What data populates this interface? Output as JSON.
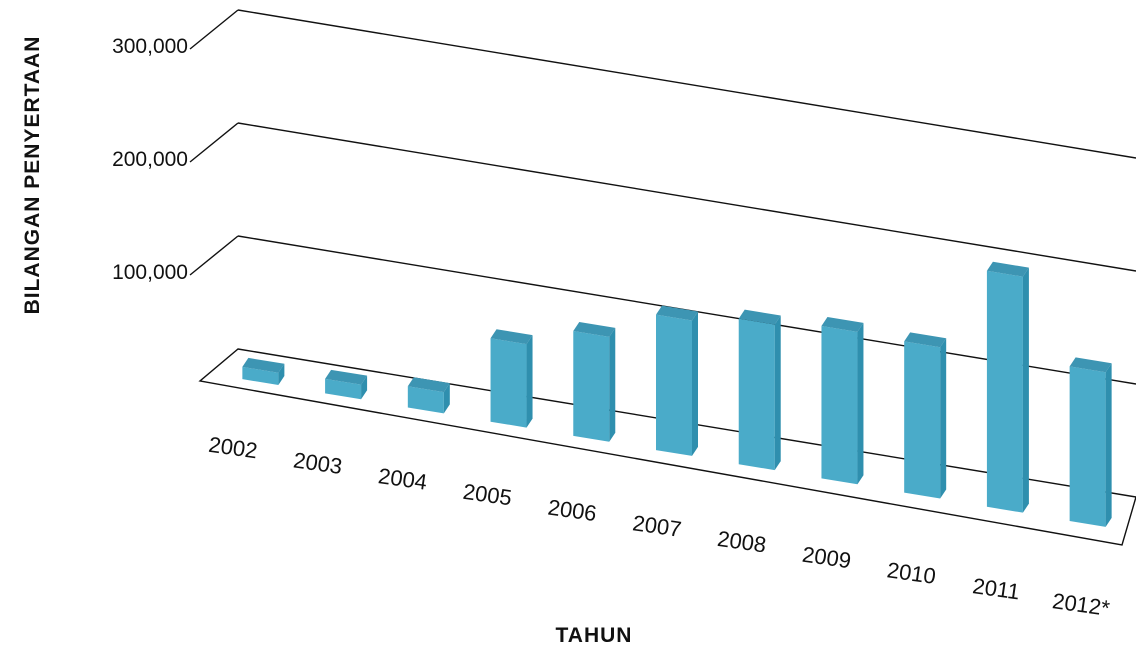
{
  "chart_data": {
    "type": "bar",
    "xlabel": "TAHUN",
    "ylabel": "BILANGAN PENYERTAAN",
    "categories": [
      "2002",
      "2003",
      "2004",
      "2005",
      "2006",
      "2007",
      "2008",
      "2009",
      "2010",
      "2011",
      "2012*"
    ],
    "values": [
      2000,
      4000,
      10000,
      65000,
      84000,
      111000,
      120000,
      126000,
      125000,
      200000,
      128000
    ],
    "y_ticks": [
      "100,000",
      "200,000",
      "300,000"
    ],
    "ylim": [
      0,
      300000
    ],
    "grid": true,
    "bar_color": "#4aabc9"
  }
}
